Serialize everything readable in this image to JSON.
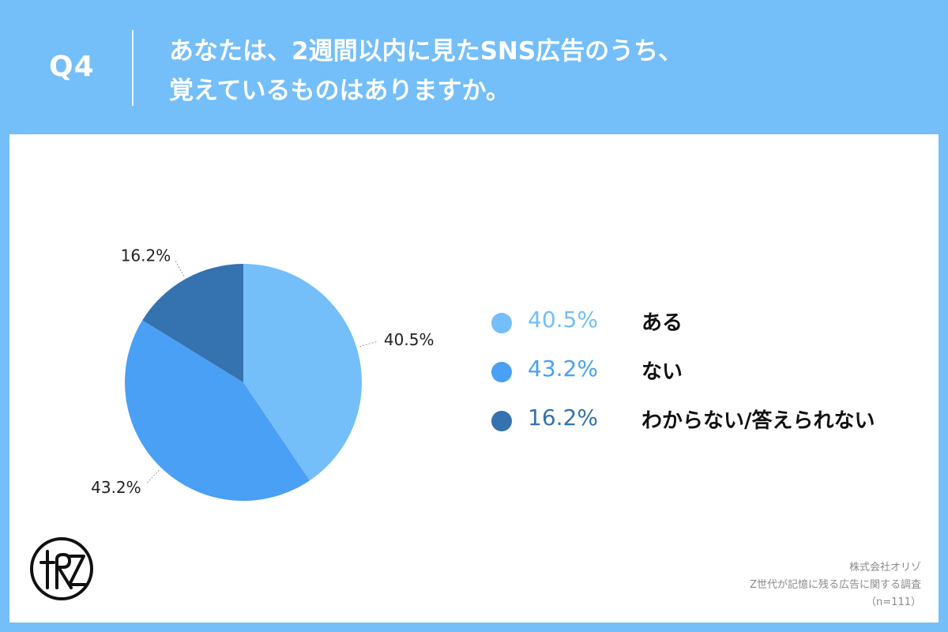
{
  "header": {
    "q_number": "Q4",
    "question_line1": "あなたは、2週間以内に見たSNS広告のうち、",
    "question_line2": "覚えているものはありますか。"
  },
  "chart_data": {
    "type": "pie",
    "title": "",
    "slices": [
      {
        "label": "ある",
        "value": 40.5,
        "display": "40.5%",
        "color": "#74befa"
      },
      {
        "label": "ない",
        "value": 43.2,
        "display": "43.2%",
        "color": "#4aa0f4"
      },
      {
        "label": "わからない/答えられない",
        "value": 16.2,
        "display": "16.2%",
        "color": "#3572b0"
      }
    ],
    "legend_position": "right"
  },
  "footer": {
    "company": "株式会社オリゾ",
    "survey": "Z世代が記憶に残る広告に関する調査",
    "sample": "（n=111）"
  },
  "logo": {
    "icon": "orizo-logo-icon"
  }
}
